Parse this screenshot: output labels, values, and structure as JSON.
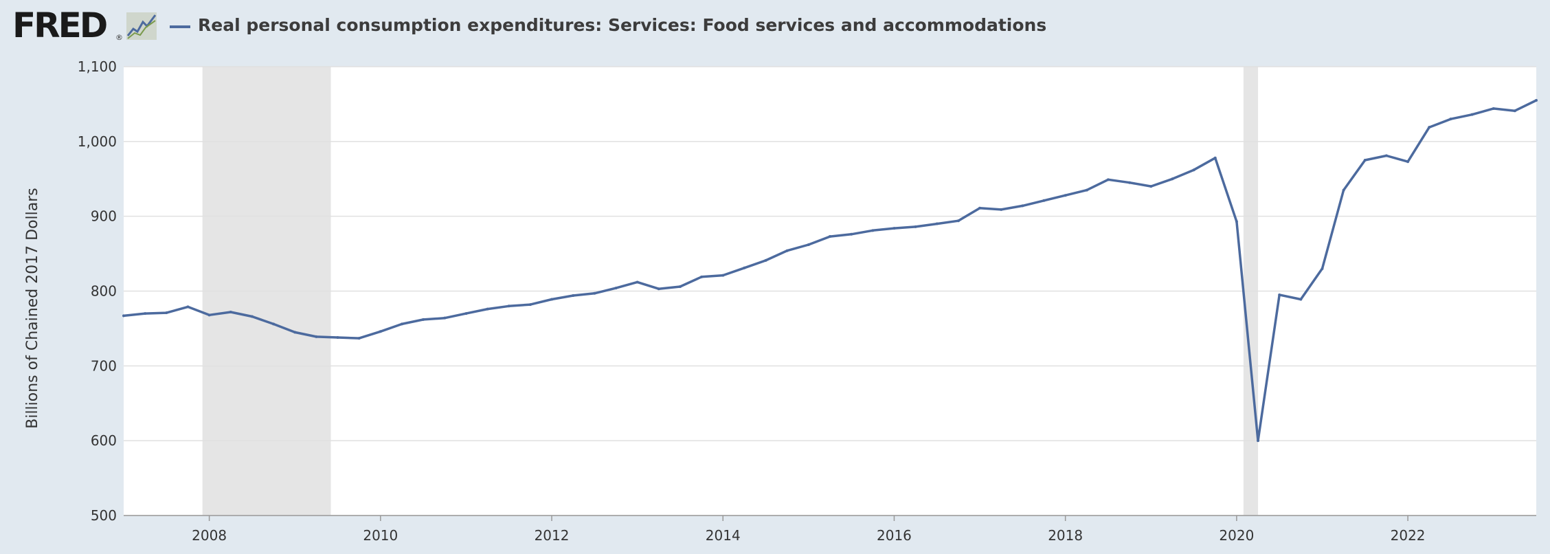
{
  "header": {
    "logo_text": "FRED",
    "logo_mark": "®",
    "logo_graph_icon": "line-chart-icon",
    "series_title": "Real personal consumption expenditures: Services: Food services and accommodations"
  },
  "colors": {
    "background": "#e1e9f0",
    "series": "#4c6a9e",
    "recession": "#e5e5e5",
    "grid": "#e0e0e0"
  },
  "chart_data": {
    "type": "line",
    "title": "Real personal consumption expenditures: Services: Food services and accommodations",
    "xlabel": "",
    "ylabel": "Billions of Chained 2017 Dollars",
    "ylim": [
      500,
      1100
    ],
    "xlim": [
      2007.0,
      2023.5
    ],
    "grid": true,
    "y_ticks": [
      "500",
      "600",
      "700",
      "800",
      "900",
      "1,000",
      "1,100"
    ],
    "x_ticks": [
      "2008",
      "2010",
      "2012",
      "2014",
      "2016",
      "2018",
      "2020",
      "2022"
    ],
    "recessions": [
      [
        2007.92,
        2009.42
      ],
      [
        2020.08,
        2020.25
      ]
    ],
    "series": [
      {
        "name": "Real personal consumption expenditures: Services: Food services and accommodations",
        "frequency": "quarterly",
        "x": [
          2007.0,
          2007.25,
          2007.5,
          2007.75,
          2008.0,
          2008.25,
          2008.5,
          2008.75,
          2009.0,
          2009.25,
          2009.5,
          2009.75,
          2010.0,
          2010.25,
          2010.5,
          2010.75,
          2011.0,
          2011.25,
          2011.5,
          2011.75,
          2012.0,
          2012.25,
          2012.5,
          2012.75,
          2013.0,
          2013.25,
          2013.5,
          2013.75,
          2014.0,
          2014.25,
          2014.5,
          2014.75,
          2015.0,
          2015.25,
          2015.5,
          2015.75,
          2016.0,
          2016.25,
          2016.5,
          2016.75,
          2017.0,
          2017.25,
          2017.5,
          2017.75,
          2018.0,
          2018.25,
          2018.5,
          2018.75,
          2019.0,
          2019.25,
          2019.5,
          2019.75,
          2020.0,
          2020.25,
          2020.5,
          2020.75,
          2021.0,
          2021.25,
          2021.5,
          2021.75,
          2022.0,
          2022.25,
          2022.5,
          2022.75,
          2023.0,
          2023.25,
          2023.5
        ],
        "values": [
          767,
          770,
          771,
          779,
          768,
          772,
          766,
          756,
          745,
          739,
          738,
          737,
          746,
          756,
          762,
          764,
          770,
          776,
          780,
          782,
          789,
          794,
          797,
          804,
          812,
          803,
          806,
          819,
          821,
          831,
          841,
          854,
          862,
          873,
          876,
          881,
          884,
          886,
          890,
          894,
          911,
          909,
          914,
          921,
          928,
          935,
          949,
          945,
          940,
          950,
          962,
          978,
          893,
          600,
          795,
          789,
          830,
          935,
          975,
          981,
          973,
          1019,
          1030,
          1036,
          1044,
          1041,
          1055
        ]
      }
    ]
  }
}
